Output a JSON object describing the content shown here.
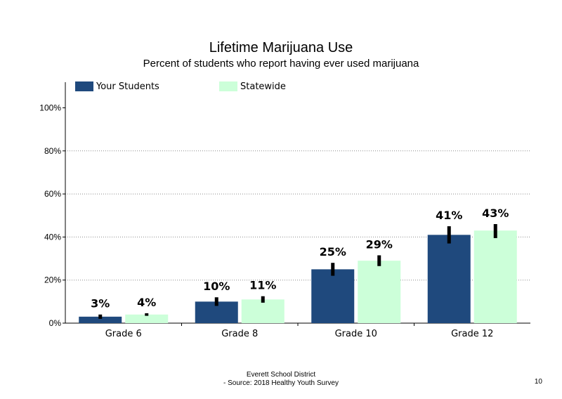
{
  "header": {
    "title": "Lifetime Marijuana Use",
    "subtitle": "Percent of students who report having ever used marijuana"
  },
  "legend": [
    {
      "label": "Your Students",
      "color": "#1f497d"
    },
    {
      "label": "Statewide",
      "color": "#ccffd9"
    }
  ],
  "chart_data": {
    "type": "bar",
    "categories": [
      "Grade 6",
      "Grade 8",
      "Grade 10",
      "Grade 12"
    ],
    "series": [
      {
        "name": "Your Students",
        "values": [
          3,
          10,
          25,
          41
        ],
        "labels": [
          "3%",
          "10%",
          "25%",
          "41%"
        ],
        "error_low": [
          2,
          8,
          22,
          37
        ],
        "error_high": [
          4,
          12,
          28,
          45
        ],
        "color": "#1f497d"
      },
      {
        "name": "Statewide",
        "values": [
          4,
          11,
          29,
          43
        ],
        "labels": [
          "4%",
          "11%",
          "29%",
          "43%"
        ],
        "error_low": [
          3.4,
          9.5,
          26.5,
          39.5
        ],
        "error_high": [
          4.6,
          12.5,
          31.5,
          46
        ],
        "color": "#ccffd9"
      }
    ],
    "yticks": [
      "0%",
      "20%",
      "40%",
      "60%",
      "80%",
      "100%"
    ],
    "ytick_values": [
      0,
      20,
      40,
      60,
      80,
      100
    ],
    "ylim": [
      0,
      100
    ],
    "grid": "dotted horizontal"
  },
  "footer": {
    "line1": "Everett School District",
    "line2": "- Source: 2018 Healthy Youth Survey",
    "page": "10"
  }
}
